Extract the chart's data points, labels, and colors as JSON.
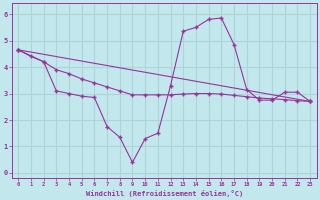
{
  "title": "",
  "xlabel": "Windchill (Refroidissement éolien,°C)",
  "ylabel": "",
  "bg_color": "#c2e8ed",
  "grid_color": "#aed4d8",
  "line_color": "#993399",
  "xlim": [
    -0.5,
    23.5
  ],
  "ylim": [
    -0.2,
    6.4
  ],
  "xticks": [
    0,
    1,
    2,
    3,
    4,
    5,
    6,
    7,
    8,
    9,
    10,
    11,
    12,
    13,
    14,
    15,
    16,
    17,
    18,
    19,
    20,
    21,
    22,
    23
  ],
  "yticks": [
    0,
    1,
    2,
    3,
    4,
    5,
    6
  ],
  "series1_x": [
    0,
    1,
    2,
    3,
    4,
    5,
    6,
    7,
    8,
    9,
    10,
    11,
    12,
    13,
    14,
    15,
    16,
    17,
    18,
    19,
    20,
    21,
    22,
    23
  ],
  "series1_y": [
    4.65,
    4.4,
    4.2,
    3.1,
    3.0,
    2.9,
    2.85,
    1.75,
    1.35,
    0.4,
    1.3,
    1.5,
    3.3,
    5.35,
    5.5,
    5.8,
    5.85,
    4.85,
    3.15,
    2.75,
    2.75,
    3.05,
    3.05,
    2.7
  ],
  "series2_x": [
    0,
    23
  ],
  "series2_y": [
    4.65,
    2.7
  ],
  "series3_x": [
    0,
    2,
    3,
    4,
    5,
    6,
    7,
    8,
    9,
    10,
    11,
    12,
    13,
    14,
    15,
    16,
    17,
    18,
    19,
    20,
    21,
    22,
    23
  ],
  "series3_y": [
    4.65,
    4.2,
    3.9,
    3.75,
    3.55,
    3.4,
    3.25,
    3.1,
    2.95,
    2.95,
    2.95,
    2.95,
    2.98,
    3.0,
    3.0,
    2.98,
    2.93,
    2.88,
    2.83,
    2.8,
    2.77,
    2.73,
    2.7
  ]
}
